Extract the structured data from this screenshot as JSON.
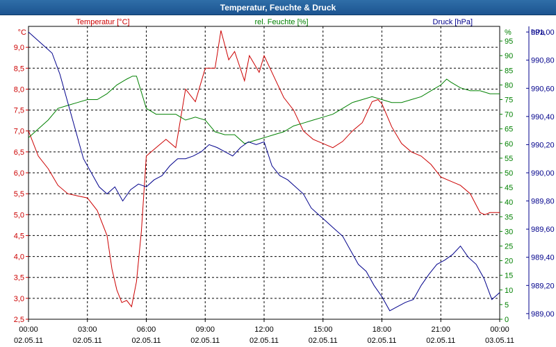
{
  "window": {
    "title": "Temperatur, Feuchte & Druck"
  },
  "colors": {
    "temperature": "#cc0000",
    "humidity": "#008000",
    "pressure": "#00008b",
    "grid": "#000000"
  },
  "chart_data": {
    "type": "line",
    "title": "Temperatur, Feuchte & Druck",
    "grid": true,
    "x_ticks": [
      {
        "time": "00:00",
        "date": "02.05.11"
      },
      {
        "time": "03:00",
        "date": "02.05.11"
      },
      {
        "time": "06:00",
        "date": "02.05.11"
      },
      {
        "time": "09:00",
        "date": "02.05.11"
      },
      {
        "time": "12:00",
        "date": "02.05.11"
      },
      {
        "time": "15:00",
        "date": "02.05.11"
      },
      {
        "time": "18:00",
        "date": "02.05.11"
      },
      {
        "time": "21:00",
        "date": "02.05.11"
      },
      {
        "time": "00:00",
        "date": "03.05.11"
      }
    ],
    "x_range_hours": [
      0,
      24
    ],
    "axes": {
      "temperature": {
        "label": "Temperatur [°C]",
        "unit": "°C",
        "range": [
          2.5,
          9.5
        ],
        "ticks": [
          "2,5",
          "3,0",
          "3,5",
          "4,0",
          "4,5",
          "5,0",
          "5,5",
          "6,0",
          "6,5",
          "7,0",
          "7,5",
          "8,0",
          "8,5",
          "9,0"
        ]
      },
      "humidity": {
        "label": "rel. Feuchte [%]",
        "unit": "%",
        "range": [
          0,
          100
        ],
        "ticks": [
          "0",
          "5",
          "10",
          "15",
          "20",
          "25",
          "30",
          "35",
          "40",
          "45",
          "50",
          "55",
          "60",
          "65",
          "70",
          "75",
          "80",
          "85",
          "90",
          "95"
        ]
      },
      "pressure": {
        "label": "Druck [hPa]",
        "unit": "hPa",
        "range": [
          988.96,
          991.04
        ],
        "ticks": [
          "989,00",
          "989,20",
          "989,40",
          "989,60",
          "989,80",
          "990,00",
          "990,20",
          "990,40",
          "990,60",
          "990,80",
          "991,00"
        ]
      }
    },
    "series": [
      {
        "name": "Temperatur [°C]",
        "axis": "temperature",
        "x": [
          0,
          0.5,
          1,
          1.5,
          2,
          2.5,
          3,
          3.5,
          4,
          4.25,
          4.5,
          4.75,
          5,
          5.25,
          5.5,
          5.75,
          6,
          6.5,
          7,
          7.5,
          8,
          8.5,
          9,
          9.5,
          9.8,
          10.2,
          10.5,
          11,
          11.25,
          11.5,
          11.75,
          12,
          12.5,
          13,
          13.5,
          14,
          14.5,
          15,
          15.5,
          16,
          16.5,
          17,
          17.5,
          17.8,
          18,
          18.5,
          19,
          19.5,
          20,
          20.5,
          21,
          21.5,
          22,
          22.5,
          23,
          23.25,
          23.5,
          24
        ],
        "y": [
          7.0,
          6.4,
          6.1,
          5.7,
          5.5,
          5.45,
          5.4,
          5.1,
          4.5,
          3.7,
          3.2,
          2.9,
          2.95,
          2.8,
          3.4,
          4.6,
          6.4,
          6.6,
          6.8,
          6.6,
          8.0,
          7.7,
          8.5,
          8.5,
          9.4,
          8.7,
          8.9,
          8.2,
          8.8,
          8.6,
          8.4,
          8.8,
          8.3,
          7.8,
          7.5,
          7.0,
          6.8,
          6.7,
          6.6,
          6.75,
          7.0,
          7.2,
          7.7,
          7.75,
          7.65,
          7.1,
          6.7,
          6.5,
          6.4,
          6.2,
          5.9,
          5.8,
          5.7,
          5.5,
          5.05,
          5.0,
          5.05,
          5.05
        ]
      },
      {
        "name": "rel. Feuchte [%]",
        "axis": "humidity",
        "x": [
          0,
          0.5,
          1,
          1.5,
          2,
          2.5,
          3,
          3.5,
          4,
          4.5,
          5,
          5.3,
          5.5,
          6,
          6.5,
          7,
          7.5,
          8,
          8.5,
          9,
          9.5,
          10,
          10.5,
          11,
          11.5,
          12,
          12.5,
          13,
          13.5,
          14,
          14.5,
          15,
          15.5,
          16,
          16.5,
          17,
          17.5,
          18,
          18.5,
          19,
          19.5,
          20,
          20.5,
          21,
          21.3,
          21.5,
          22,
          22.5,
          23,
          23.5,
          24
        ],
        "y": [
          62,
          65,
          68,
          72,
          73,
          74,
          75,
          75,
          77,
          80,
          82,
          83,
          83,
          72,
          70,
          70,
          70,
          68,
          69,
          68,
          64,
          63,
          63,
          60,
          61,
          62,
          63,
          64,
          66,
          67,
          68,
          69,
          70,
          72,
          74,
          75,
          76,
          75,
          74,
          74,
          75,
          76,
          78,
          80,
          82,
          81,
          79,
          78,
          78,
          77,
          77
        ]
      },
      {
        "name": "Druck [hPa]",
        "axis": "pressure",
        "x": [
          0,
          0.4,
          0.8,
          1.2,
          1.6,
          2,
          2.4,
          2.8,
          3.2,
          3.6,
          4,
          4.4,
          4.8,
          5.2,
          5.6,
          6,
          6.4,
          6.8,
          7.2,
          7.6,
          8,
          8.4,
          8.8,
          9.2,
          9.6,
          10,
          10.4,
          10.8,
          11.2,
          11.6,
          12,
          12.4,
          12.8,
          13.2,
          13.6,
          14,
          14.4,
          14.8,
          15.2,
          15.6,
          16,
          16.4,
          16.8,
          17.2,
          17.6,
          18,
          18.4,
          18.8,
          19.2,
          19.6,
          20,
          20.4,
          20.8,
          21.2,
          21.6,
          22,
          22.4,
          22.8,
          23.2,
          23.6,
          24
        ],
        "y": [
          991.0,
          990.95,
          990.9,
          990.85,
          990.7,
          990.5,
          990.3,
          990.1,
          990.0,
          989.9,
          989.85,
          989.9,
          989.8,
          989.88,
          989.92,
          989.9,
          989.95,
          989.98,
          990.05,
          990.1,
          990.1,
          990.12,
          990.15,
          990.2,
          990.18,
          990.15,
          990.12,
          990.18,
          990.22,
          990.2,
          990.22,
          990.05,
          989.98,
          989.95,
          989.9,
          989.85,
          989.75,
          989.7,
          989.65,
          989.6,
          989.55,
          989.45,
          989.35,
          989.3,
          989.2,
          989.12,
          989.02,
          989.05,
          989.08,
          989.1,
          989.2,
          989.28,
          989.35,
          989.38,
          989.42,
          989.48,
          989.4,
          989.35,
          989.25,
          989.1,
          989.15
        ]
      }
    ]
  }
}
